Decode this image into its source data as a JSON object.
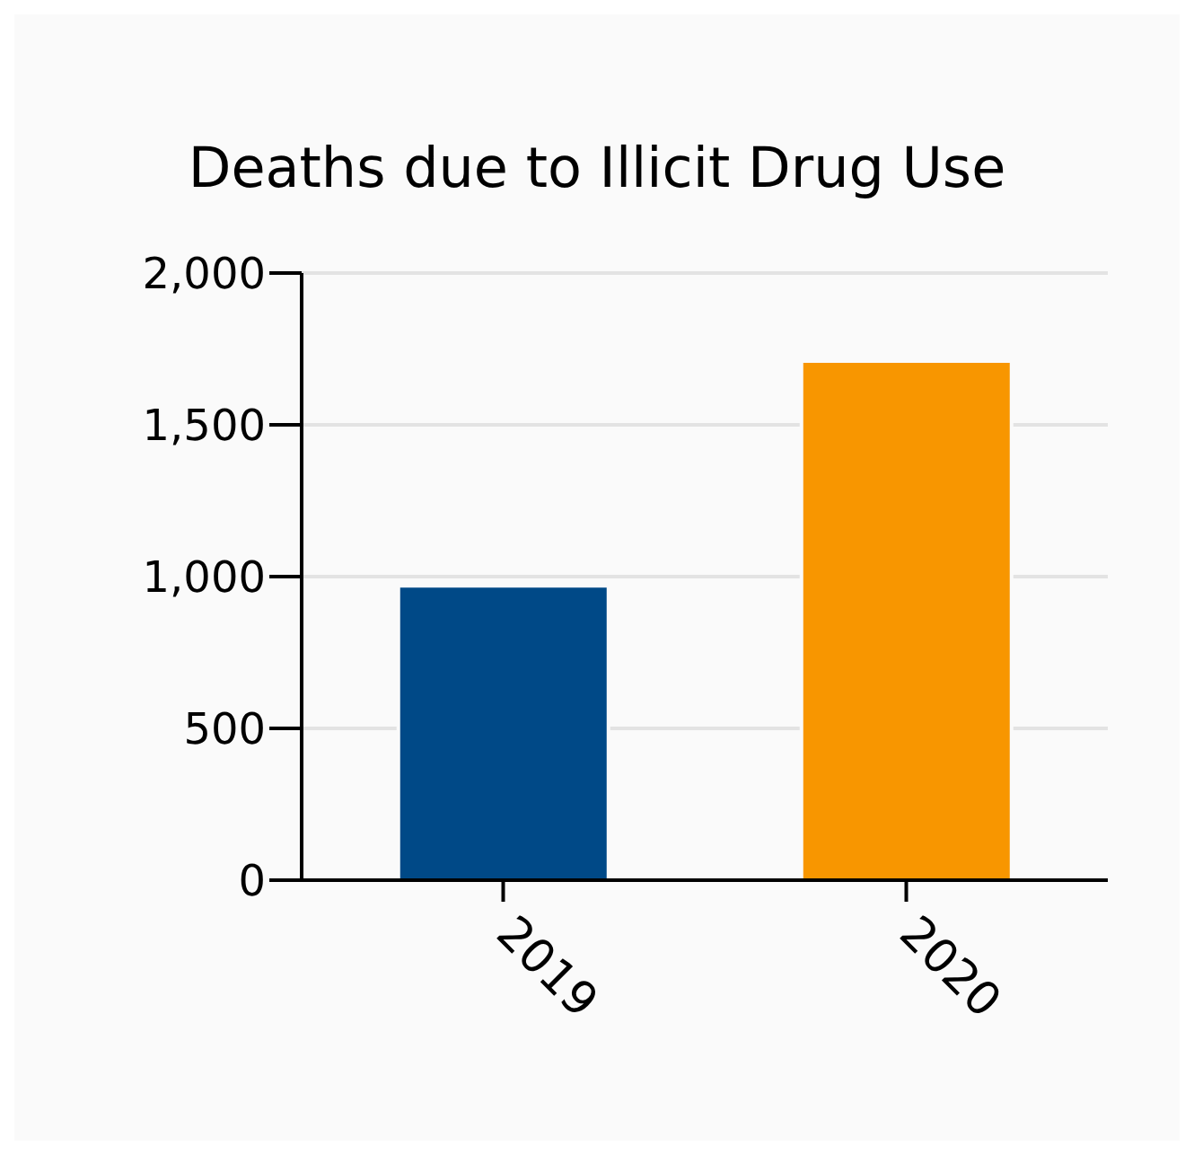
{
  "chart_data": {
    "type": "bar",
    "title": "Deaths due to Illicit Drug Use",
    "categories": [
      "2019",
      "2020"
    ],
    "values": [
      970,
      1710
    ],
    "colors": [
      "#004987",
      "#f89600"
    ],
    "ylim": [
      0,
      2000
    ],
    "yticks": [
      0,
      500,
      {
        "value": 1000,
        "label": "1,000"
      },
      {
        "value": 1500,
        "label": "1,500"
      },
      {
        "value": 2000,
        "label": "2,000"
      }
    ],
    "grid": "y"
  }
}
